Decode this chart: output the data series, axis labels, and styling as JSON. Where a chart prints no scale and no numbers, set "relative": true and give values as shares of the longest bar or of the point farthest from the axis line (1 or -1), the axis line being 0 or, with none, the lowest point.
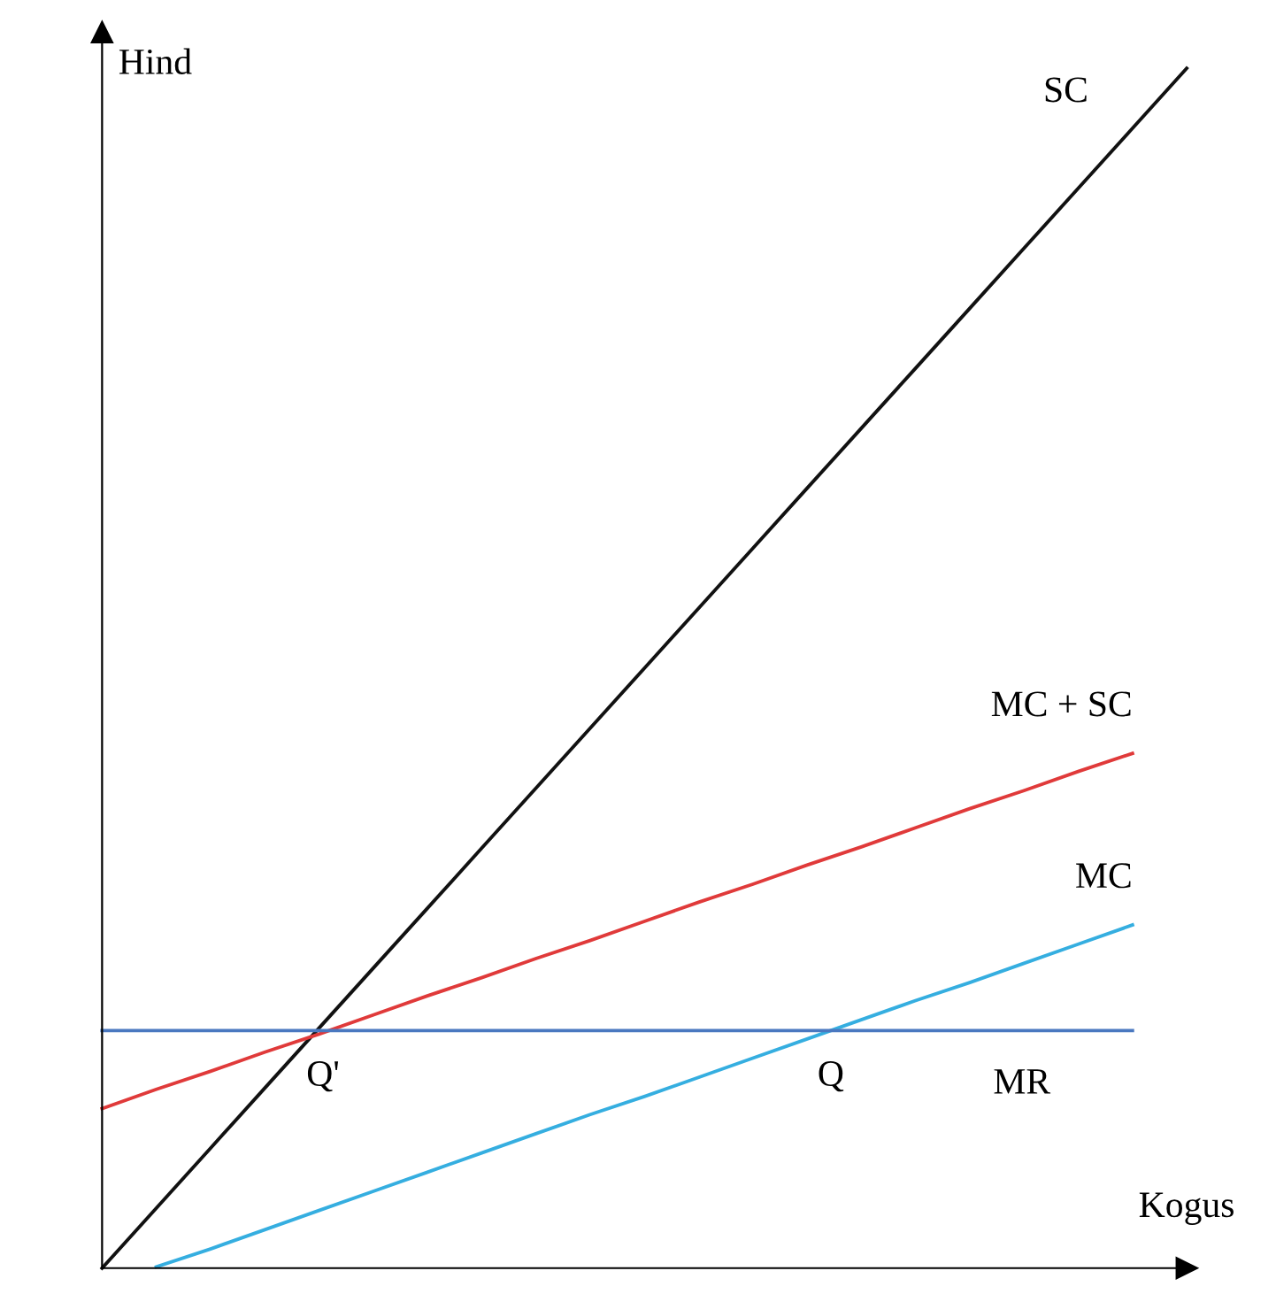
{
  "chart_data": {
    "type": "line",
    "relative": true,
    "xlabel": "Kogus",
    "ylabel": "Hind",
    "legend": false,
    "marker": "none",
    "line_style": "solid",
    "categories": [
      null,
      null,
      null,
      null,
      null,
      null,
      null,
      null,
      null,
      null,
      null,
      null,
      null,
      null,
      null,
      null,
      null,
      null,
      null,
      null,
      null
    ],
    "series": [
      {
        "name": "SC",
        "color": "#111111",
        "values": [
          0,
          0.05,
          0.1,
          0.15,
          0.2,
          0.25,
          0.3,
          0.35,
          0.4,
          0.45,
          0.5,
          0.55,
          0.6,
          0.65,
          0.7,
          0.75,
          0.8,
          0.85,
          0.9,
          0.95,
          1.0
        ]
      },
      {
        "name": "MC + SC",
        "color": "#e03a3a",
        "values": [
          0.133,
          0.149,
          0.164,
          0.18,
          0.195,
          0.211,
          0.227,
          0.242,
          0.258,
          0.273,
          0.289,
          0.305,
          0.32,
          0.336,
          0.351,
          0.367,
          0.383,
          0.398,
          0.414,
          0.429,
          null
        ]
      },
      {
        "name": "MC",
        "color": "#35aee0",
        "values": [
          null,
          0.001,
          0.016,
          0.032,
          0.048,
          0.064,
          0.08,
          0.096,
          0.112,
          0.128,
          0.143,
          0.159,
          0.175,
          0.191,
          0.207,
          0.223,
          0.238,
          0.254,
          0.27,
          0.286,
          null
        ]
      },
      {
        "name": "MR",
        "color": "#4a78c0",
        "values": [
          0.198,
          0.198,
          0.198,
          0.198,
          0.198,
          0.198,
          0.198,
          0.198,
          0.198,
          0.198,
          0.198,
          0.198,
          0.198,
          0.198,
          0.198,
          0.198,
          0.198,
          0.198,
          0.198,
          0.198,
          null
        ]
      }
    ],
    "annotations": [
      "Q'",
      "Q"
    ]
  }
}
